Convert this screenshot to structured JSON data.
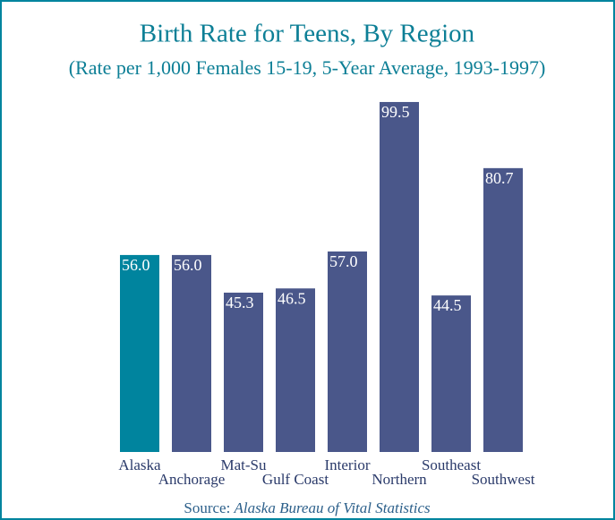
{
  "chart_data": {
    "type": "bar",
    "title": "Birth Rate for Teens, By Region",
    "subtitle": "(Rate per 1,000 Females 15-19, 5-Year  Average, 1993-1997)",
    "categories": [
      "Alaska",
      "Anchorage",
      "Mat-Su",
      "Gulf Coast",
      "Interior",
      "Northern",
      "Southeast",
      "Southwest"
    ],
    "values": [
      56,
      56,
      45.3,
      46.5,
      57,
      99.5,
      44.5,
      80.7
    ],
    "value_labels": [
      "56.0",
      "56.0",
      "45.3",
      "46.5",
      "57.0",
      "99.5",
      "44.5",
      "80.7"
    ],
    "colors": [
      "#00849e",
      "#4a578a",
      "#4a578a",
      "#4a578a",
      "#4a578a",
      "#4a578a",
      "#4a578a",
      "#4a578a"
    ],
    "source_label": "Source:",
    "source": "Alaska Bureau of Vital Statistics"
  }
}
